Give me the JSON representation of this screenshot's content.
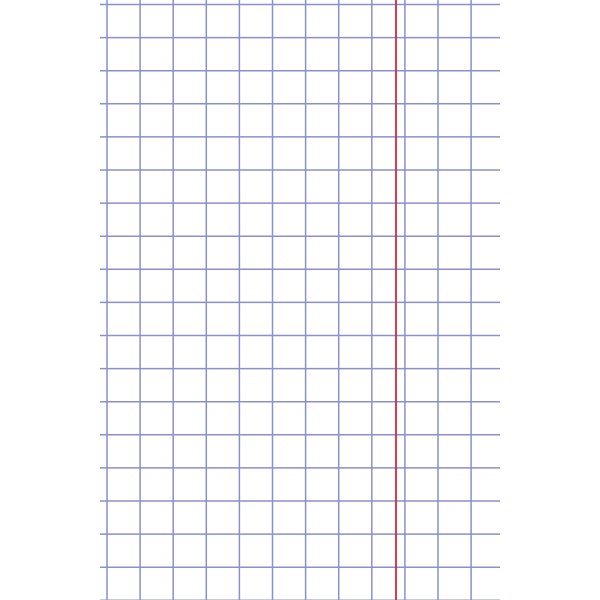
{
  "paper": {
    "type": "graph-paper",
    "grid_color": "#8c8fc8",
    "margin_line_color": "#d42a3a",
    "background_color": "#ffffff"
  }
}
